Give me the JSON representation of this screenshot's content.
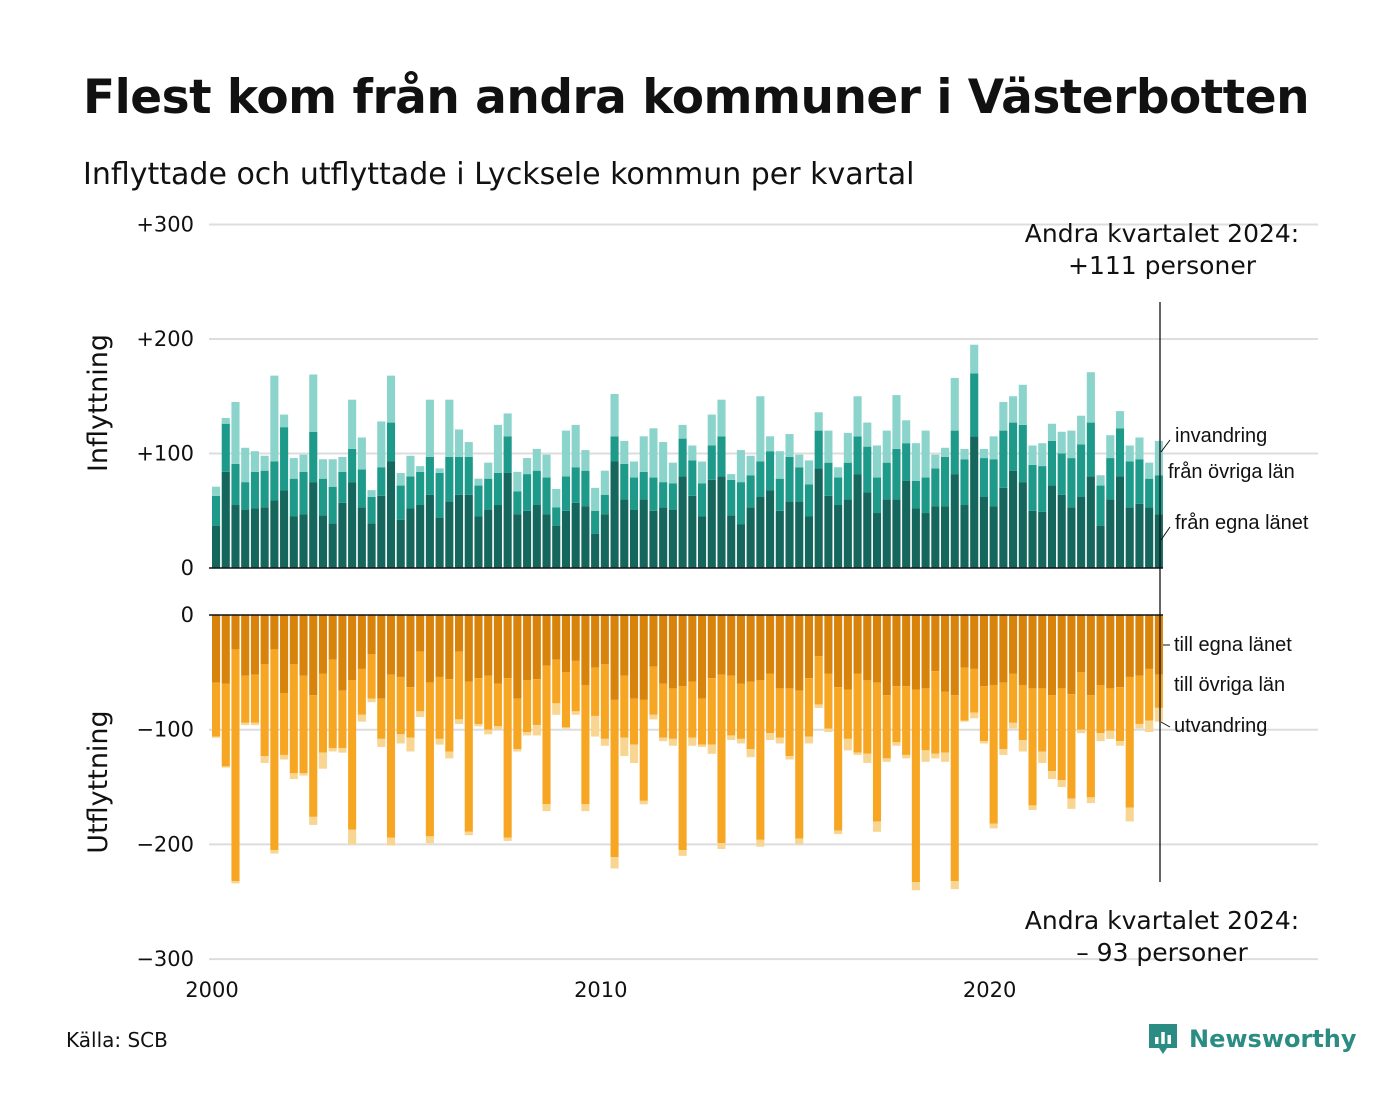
{
  "title": "Flest kom från andra kommuner i Västerbotten",
  "subtitle": "Inflyttade och utflyttade i Lycksele kommun per kvartal",
  "source": "Källa: SCB",
  "brand": "Newsworthy",
  "colors": {
    "in_own": "#15675d",
    "in_other": "#1e9a8b",
    "in_immig": "#8bd4cb",
    "out_own": "#d7830c",
    "out_other": "#f7a623",
    "out_emig": "#f8d591",
    "grid": "#dddddd",
    "brand": "#2a8c82"
  },
  "annotations": {
    "top_line1": "Andra kvartalet 2024:",
    "top_line2": "+111 personer",
    "bottom_line1": "Andra kvartalet 2024:",
    "bottom_line2": "– 93 personer"
  },
  "chart_data": {
    "type": "bar",
    "stacked": true,
    "period": "quarter",
    "start": "2000 Q1",
    "end": "2024 Q2",
    "grid": true,
    "panels": [
      {
        "ylabel": "Inflyttning",
        "yticks": [
          0,
          100,
          200,
          300
        ],
        "ytick_labels": [
          "0",
          "+100",
          "+200",
          "+300"
        ],
        "ylim": [
          0,
          300
        ],
        "series": [
          {
            "name": "från egna länet",
            "color_key": "in_own",
            "values": [
              37,
              84,
              55,
              51,
              52,
              53,
              59,
              68,
              45,
              47,
              75,
              46,
              39,
              57,
              75,
              53,
              39,
              63,
              93,
              42,
              52,
              55,
              64,
              44,
              58,
              64,
              64,
              45,
              51,
              55,
              83,
              47,
              50,
              55,
              47,
              37,
              50,
              57,
              54,
              30,
              47,
              93,
              60,
              51,
              60,
              50,
              53,
              51,
              80,
              63,
              45,
              77,
              80,
              46,
              38,
              53,
              62,
              68,
              50,
              58,
              58,
              45,
              87,
              63,
              55,
              60,
              82,
              66,
              48,
              60,
              60,
              76,
              52,
              48,
              54,
              54,
              82,
              55,
              115,
              62,
              54,
              70,
              85,
              75,
              50,
              49,
              72,
              64,
              53,
              62,
              80,
              37,
              60,
              80,
              53,
              56,
              53,
              47
            ]
          },
          {
            "name": "från övriga län",
            "color_key": "in_other",
            "values": [
              26,
              42,
              36,
              24,
              32,
              32,
              34,
              55,
              33,
              37,
              44,
              32,
              32,
              27,
              29,
              33,
              23,
              25,
              34,
              30,
              28,
              29,
              33,
              39,
              39,
              33,
              33,
              27,
              27,
              28,
              32,
              20,
              32,
              30,
              32,
              16,
              30,
              31,
              31,
              20,
              17,
              22,
              31,
              28,
              24,
              29,
              22,
              23,
              33,
              31,
              29,
              30,
              35,
              31,
              37,
              28,
              31,
              34,
              28,
              39,
              30,
              28,
              33,
              29,
              24,
              32,
              33,
              40,
              31,
              32,
              44,
              33,
              24,
              31,
              33,
              43,
              38,
              40,
              55,
              34,
              41,
              50,
              42,
              50,
              40,
              40,
              39,
              36,
              43,
              46,
              47,
              35,
              36,
              42,
              40,
              39,
              25,
              34
            ]
          },
          {
            "name": "invandring",
            "color_key": "in_immig",
            "values": [
              8,
              5,
              54,
              30,
              18,
              13,
              75,
              11,
              18,
              15,
              50,
              17,
              24,
              13,
              43,
              28,
              6,
              40,
              41,
              11,
              18,
              5,
              50,
              4,
              50,
              24,
              13,
              6,
              14,
              42,
              20,
              17,
              14,
              19,
              20,
              16,
              40,
              37,
              18,
              20,
              21,
              37,
              20,
              14,
              31,
              43,
              35,
              18,
              12,
              13,
              19,
              27,
              32,
              5,
              28,
              17,
              57,
              13,
              24,
              20,
              11,
              21,
              16,
              28,
              9,
              26,
              35,
              21,
              28,
              28,
              47,
              20,
              33,
              41,
              12,
              8,
              46,
              9,
              25,
              8,
              20,
              25,
              23,
              35,
              17,
              20,
              15,
              19,
              24,
              25,
              44,
              9,
              20,
              15,
              14,
              19,
              14,
              30
            ]
          }
        ]
      },
      {
        "ylabel": "Utflyttning",
        "yticks": [
          0,
          -100,
          -200,
          -300
        ],
        "ytick_labels": [
          "0",
          "−100",
          "−200",
          "−300"
        ],
        "ylim": [
          -300,
          0
        ],
        "series": [
          {
            "name": "till egna länet",
            "color_key": "out_own",
            "values": [
              -59,
              -60,
              -30,
              -53,
              -52,
              -43,
              -30,
              -68,
              -43,
              -53,
              -70,
              -51,
              -39,
              -66,
              -57,
              -47,
              -34,
              -73,
              -52,
              -54,
              -63,
              -32,
              -59,
              -54,
              -56,
              -32,
              -58,
              -55,
              -53,
              -60,
              -55,
              -73,
              -57,
              -56,
              -44,
              -39,
              -50,
              -40,
              -61,
              -46,
              -43,
              -74,
              -53,
              -73,
              -74,
              -45,
              -60,
              -64,
              -62,
              -58,
              -73,
              -55,
              -52,
              -53,
              -60,
              -58,
              -57,
              -51,
              -64,
              -64,
              -66,
              -55,
              -36,
              -51,
              -63,
              -65,
              -51,
              -57,
              -59,
              -70,
              -62,
              -62,
              -65,
              -64,
              -49,
              -67,
              -70,
              -46,
              -47,
              -62,
              -61,
              -59,
              -51,
              -61,
              -64,
              -64,
              -70,
              -64,
              -69,
              -50,
              -70,
              -61,
              -64,
              -63,
              -54,
              -53,
              -47,
              -52
            ]
          },
          {
            "name": "till övriga län",
            "color_key": "out_other",
            "values": [
              -47,
              -72,
              -202,
              -41,
              -42,
              -80,
              -175,
              -54,
              -95,
              -85,
              -106,
              -69,
              -77,
              -50,
              -130,
              -40,
              -39,
              -35,
              -142,
              -50,
              -44,
              -52,
              -134,
              -54,
              -63,
              -59,
              -131,
              -40,
              -47,
              -37,
              -139,
              -44,
              -45,
              -40,
              -121,
              -38,
              -48,
              -44,
              -104,
              -42,
              -65,
              -137,
              -54,
              -40,
              -88,
              -42,
              -47,
              -44,
              -143,
              -49,
              -40,
              -58,
              -147,
              -52,
              -48,
              -59,
              -139,
              -52,
              -43,
              -59,
              -129,
              -51,
              -42,
              -48,
              -125,
              -43,
              -69,
              -64,
              -121,
              -55,
              -49,
              -60,
              -168,
              -54,
              -72,
              -53,
              -162,
              -46,
              -38,
              -48,
              -121,
              -58,
              -43,
              -48,
              -102,
              -55,
              -66,
              -80,
              -91,
              -50,
              -89,
              -42,
              -37,
              -47,
              -114,
              -42,
              -45,
              -29
            ]
          },
          {
            "name": "utvandring",
            "color_key": "out_emig",
            "values": [
              -1,
              -1,
              -2,
              -2,
              -2,
              -6,
              -3,
              -4,
              -5,
              -2,
              -7,
              -14,
              -3,
              -4,
              -13,
              -6,
              -3,
              -7,
              -7,
              -8,
              -12,
              -5,
              -6,
              -5,
              -6,
              -4,
              -3,
              -2,
              -4,
              -3,
              -3,
              -2,
              -3,
              -9,
              -6,
              -10,
              -1,
              -3,
              -6,
              -18,
              -6,
              -10,
              -16,
              -16,
              -3,
              -4,
              -3,
              -6,
              -5,
              -7,
              -2,
              -8,
              -5,
              -4,
              -4,
              -7,
              -6,
              -6,
              -5,
              -3,
              -5,
              -6,
              -3,
              -3,
              -3,
              -10,
              -2,
              -8,
              -9,
              -3,
              -3,
              -3,
              -7,
              -10,
              -4,
              -8,
              -7,
              -1,
              -5,
              -2,
              -4,
              -5,
              -5,
              -10,
              -4,
              -10,
              -7,
              -6,
              -9,
              -3,
              -5,
              -7,
              -7,
              -4,
              -12,
              -4,
              -10,
              -12
            ]
          }
        ]
      }
    ],
    "xticks": [
      "2000",
      "2010",
      "2020"
    ],
    "xtick_positions": [
      2000,
      2010,
      2020
    ]
  }
}
